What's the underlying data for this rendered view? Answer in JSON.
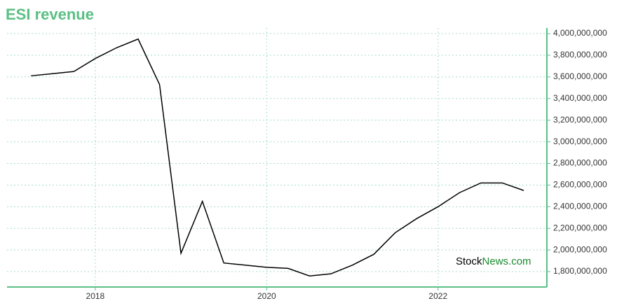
{
  "chart_data": {
    "type": "line",
    "title": "ESI revenue",
    "watermark": {
      "part1": "Stock",
      "part2": "News.com"
    },
    "x": [
      2017.25,
      2017.5,
      2017.75,
      2018.0,
      2018.25,
      2018.5,
      2018.75,
      2019.0,
      2019.25,
      2019.5,
      2019.75,
      2020.0,
      2020.25,
      2020.5,
      2020.75,
      2021.0,
      2021.25,
      2021.5,
      2021.75,
      2022.0,
      2022.25,
      2022.5,
      2022.75,
      2023.0
    ],
    "series": [
      {
        "name": "ESI revenue",
        "color": "#000000",
        "values": [
          3610000000,
          3630000000,
          3650000000,
          3770000000,
          3870000000,
          3950000000,
          3530000000,
          1970000000,
          2450000000,
          1880000000,
          1860000000,
          1840000000,
          1830000000,
          1760000000,
          1780000000,
          1860000000,
          1960000000,
          2160000000,
          2290000000,
          2400000000,
          2530000000,
          2620000000,
          2620000000,
          2550000000
        ]
      }
    ],
    "xlim": [
      2016.97,
      2023.27
    ],
    "xticks": [
      2018,
      2020,
      2022
    ],
    "ylim": [
      1658000000,
      4052000000
    ],
    "yticks": [
      {
        "value": 1800000000,
        "label": "1,800,000,000"
      },
      {
        "value": 2000000000,
        "label": "2,000,000,000"
      },
      {
        "value": 2200000000,
        "label": "2,200,000,000"
      },
      {
        "value": 2400000000,
        "label": "2,400,000,000"
      },
      {
        "value": 2600000000,
        "label": "2,600,000,000"
      },
      {
        "value": 2800000000,
        "label": "2,800,000,000"
      },
      {
        "value": 3000000000,
        "label": "3,000,000,000"
      },
      {
        "value": 3200000000,
        "label": "3,200,000,000"
      },
      {
        "value": 3400000000,
        "label": "3,400,000,000"
      },
      {
        "value": 3600000000,
        "label": "3,600,000,000"
      },
      {
        "value": 3800000000,
        "label": "3,800,000,000"
      },
      {
        "value": 4000000000,
        "label": "4,000,000,000"
      }
    ],
    "grid": true,
    "axis_color": "#5bbf84",
    "grid_color": "#a8dcc8"
  }
}
